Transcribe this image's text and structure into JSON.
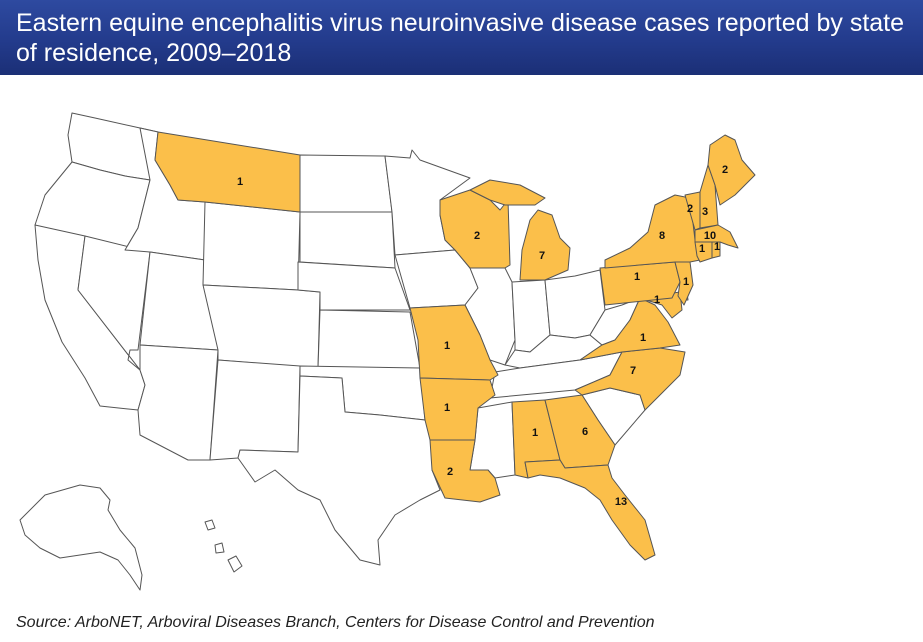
{
  "header": {
    "title": "Eastern equine encephalitis virus neuroinvasive disease cases reported by state of residence, 2009–2018"
  },
  "colors": {
    "header_bg": "#233b8c",
    "case_state_fill": "#fbbf4a",
    "no_case_fill": "#ffffff",
    "border": "#555555"
  },
  "map": {
    "states_with_cases": [
      {
        "state": "Montana",
        "cases": "1"
      },
      {
        "state": "Wisconsin",
        "cases": "2"
      },
      {
        "state": "Michigan",
        "cases": "7"
      },
      {
        "state": "Missouri",
        "cases": "1"
      },
      {
        "state": "Arkansas",
        "cases": "1"
      },
      {
        "state": "Louisiana",
        "cases": "2"
      },
      {
        "state": "Alabama",
        "cases": "1"
      },
      {
        "state": "Georgia",
        "cases": "6"
      },
      {
        "state": "Florida",
        "cases": "13"
      },
      {
        "state": "North Carolina",
        "cases": "7"
      },
      {
        "state": "Virginia",
        "cases": "1"
      },
      {
        "state": "Maryland",
        "cases": "1"
      },
      {
        "state": "New Jersey",
        "cases": "1"
      },
      {
        "state": "Pennsylvania",
        "cases": "1"
      },
      {
        "state": "New York",
        "cases": "8"
      },
      {
        "state": "Connecticut",
        "cases": "1"
      },
      {
        "state": "Rhode Island",
        "cases": "1"
      },
      {
        "state": "Massachusetts",
        "cases": "10"
      },
      {
        "state": "Vermont",
        "cases": "2"
      },
      {
        "state": "New Hampshire",
        "cases": "3"
      },
      {
        "state": "Maine",
        "cases": "2"
      }
    ]
  },
  "footer": {
    "source": "Source: ArboNET, Arboviral Diseases Branch, Centers for Disease Control and Prevention"
  }
}
